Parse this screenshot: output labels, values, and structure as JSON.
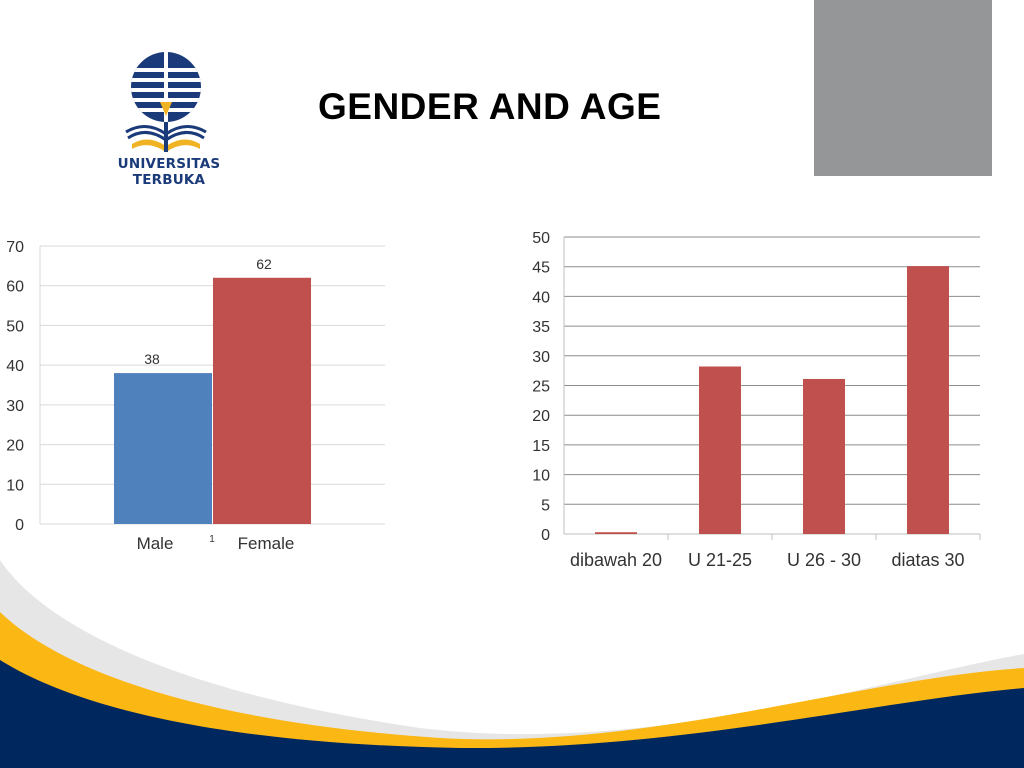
{
  "page": {
    "title": "GENDER AND AGE"
  },
  "logo": {
    "text": "UNIVERSITAS TERBUKA",
    "color": "#1a3a7a",
    "accent": "#f0b323"
  },
  "colors": {
    "navy": "#00285f",
    "yellow": "#fbb714",
    "male_bar": "#4f81bd",
    "female_bar": "#c0504d",
    "grey_box": "#959698"
  },
  "chart_data": [
    {
      "type": "bar",
      "categories": [
        "Male",
        "Female"
      ],
      "values": [
        38,
        62
      ],
      "data_labels": [
        "38",
        "62"
      ],
      "ylim": [
        0,
        70
      ],
      "yticks": [
        0,
        10,
        20,
        30,
        40,
        50,
        60,
        70
      ],
      "grid": true,
      "bar_colors": [
        "#4f81bd",
        "#c0504d"
      ],
      "stray_label": "1"
    },
    {
      "type": "bar",
      "categories": [
        "dibawah 20",
        "U 21-25",
        "U 26 - 30",
        "diatas 30"
      ],
      "values": [
        0.3,
        28.2,
        26.1,
        45.1
      ],
      "ylim": [
        0,
        50
      ],
      "yticks": [
        0,
        5,
        10,
        15,
        20,
        25,
        30,
        35,
        40,
        45,
        50
      ],
      "grid": true,
      "bar_color": "#c0504d"
    }
  ]
}
